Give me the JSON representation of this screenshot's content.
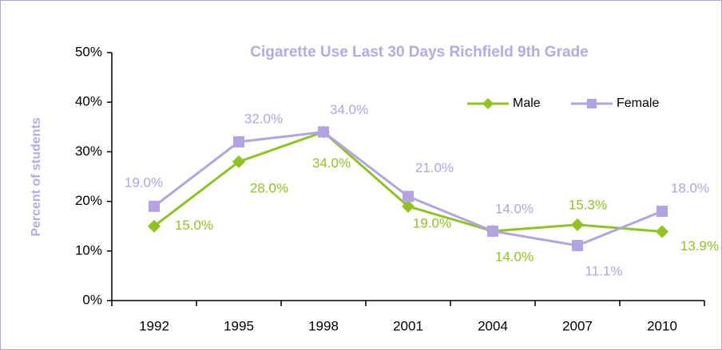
{
  "chart_data": {
    "type": "line",
    "title": "Cigarette Use Last 30 Days Richfield 9th Grade",
    "y_label": "Percent of students",
    "categories": [
      "1992",
      "1995",
      "1998",
      "2001",
      "2004",
      "2007",
      "2010"
    ],
    "series": [
      {
        "name": "Male",
        "color": "#8fc31f",
        "values": [
          15.0,
          28.0,
          34.0,
          19.0,
          14.0,
          15.3,
          13.9
        ],
        "value_labels": [
          "15.0%",
          "28.0%",
          "34.0%",
          "19.0%",
          "14.0%",
          "15.3%",
          "13.9%"
        ]
      },
      {
        "name": "Female",
        "color": "#b3a3e3",
        "values": [
          19.0,
          32.0,
          34.0,
          21.0,
          14.0,
          11.1,
          18.0
        ],
        "value_labels": [
          "19.0%",
          "32.0%",
          "34.0%",
          "21.0%",
          "14.0%",
          "11.1%",
          "18.0%"
        ]
      }
    ],
    "ylim": [
      0,
      50
    ],
    "yticks": [
      {
        "value": 0,
        "label": "0%"
      },
      {
        "value": 10,
        "label": "10%"
      },
      {
        "value": 20,
        "label": "20%"
      },
      {
        "value": 30,
        "label": "30%"
      },
      {
        "value": 40,
        "label": "40%"
      },
      {
        "value": 50,
        "label": "50%"
      }
    ],
    "grid": false,
    "legend": "upper right"
  }
}
